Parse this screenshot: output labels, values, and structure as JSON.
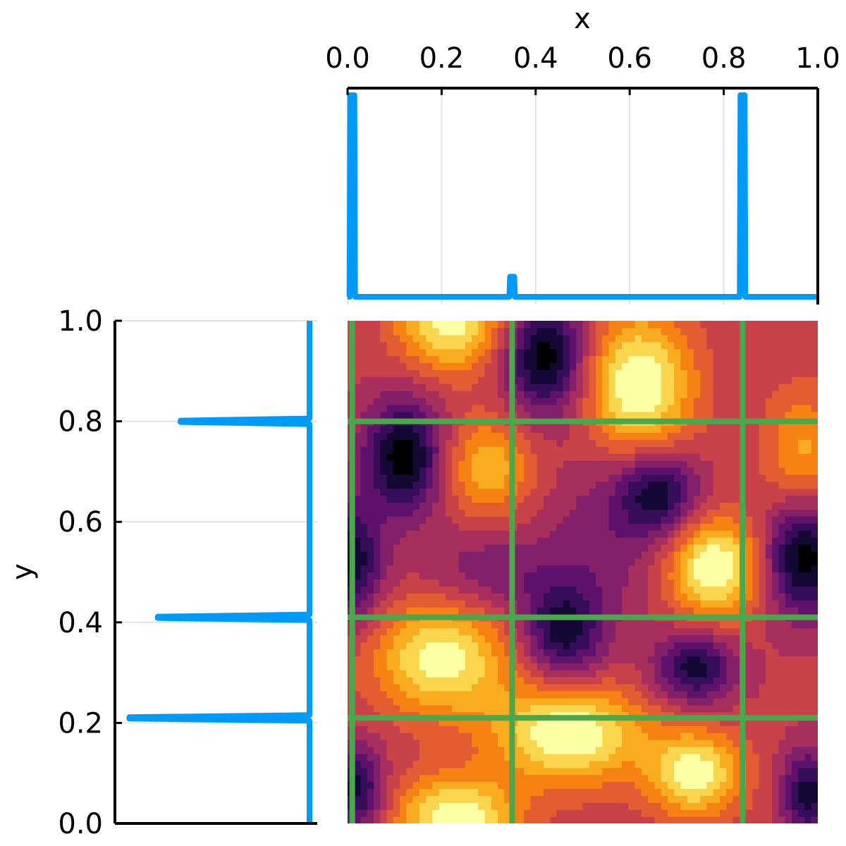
{
  "chart_data": {
    "type": "heatmap",
    "title": "",
    "xlabel": "x",
    "ylabel": "y",
    "xlim": [
      0,
      1
    ],
    "ylim": [
      0,
      1
    ],
    "x_ticks": [
      "0.0",
      "0.2",
      "0.4",
      "0.6",
      "0.8",
      "1.0"
    ],
    "y_ticks": [
      "0.0",
      "0.2",
      "0.4",
      "0.6",
      "0.8",
      "1.0"
    ],
    "grid": true,
    "colormap": "inferno",
    "selected_x": [
      0.01,
      0.35,
      0.84
    ],
    "selected_y": [
      0.21,
      0.41,
      0.8
    ],
    "top_profile": {
      "type": "line",
      "x_peaks": [
        0.01,
        0.35,
        0.84
      ],
      "peak_heights": [
        1.0,
        0.1,
        1.0
      ],
      "color": "#009AF9"
    },
    "left_profile": {
      "type": "line",
      "y_peaks": [
        0.21,
        0.41,
        0.8
      ],
      "peak_heights": [
        0.95,
        0.8,
        0.68
      ],
      "color": "#009AF9"
    },
    "gridline_color": "#4CA64C"
  }
}
